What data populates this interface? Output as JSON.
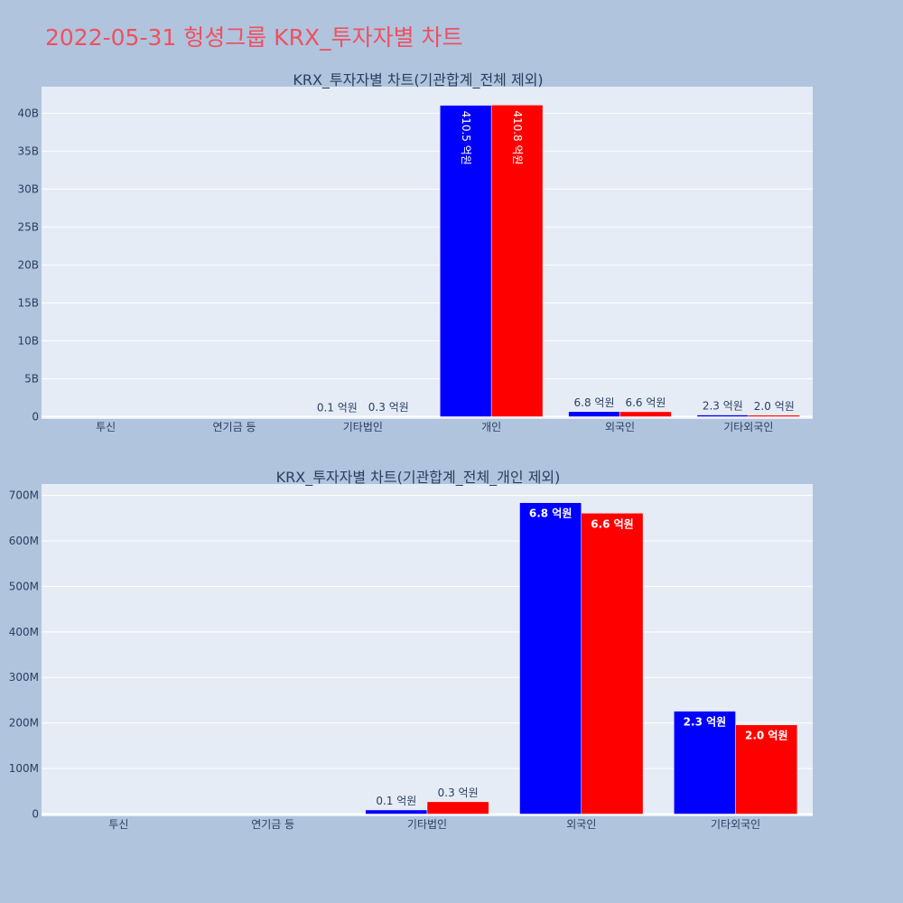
{
  "page": {
    "title": "2022-05-31 헝셩그룹 KRX_투자자별 차트"
  },
  "colors": {
    "background": "#b0c4de",
    "plot_bg": "#e5ecf6",
    "series_blue": "#0000ff",
    "series_red": "#ff0000",
    "title": "#f0505f",
    "text": "#2a3f5f"
  },
  "chart_data": [
    {
      "type": "bar",
      "title": "KRX_투자자별 차트(기관합계_전체 제외)",
      "categories": [
        "투신",
        "연기금 등",
        "기타법인",
        "개인",
        "외국인",
        "기타외국인"
      ],
      "series": [
        {
          "values": [
            0,
            0,
            10000000,
            41050000000,
            680000000,
            230000000
          ],
          "labels": [
            "",
            "",
            "0.1 억원",
            "410.5 억원",
            "6.8 억원",
            "2.3 억원"
          ]
        },
        {
          "values": [
            0,
            0,
            30000000,
            41080000000,
            660000000,
            200000000
          ],
          "labels": [
            "",
            "",
            "0.3 억원",
            "410.8 억원",
            "6.6 억원",
            "2.0 억원"
          ]
        }
      ],
      "yticks": [
        0,
        5000000000,
        10000000000,
        15000000000,
        20000000000,
        25000000000,
        30000000000,
        35000000000,
        40000000000
      ],
      "ytick_labels": [
        "0",
        "5B",
        "10B",
        "15B",
        "20B",
        "25B",
        "30B",
        "35B",
        "40B"
      ],
      "ylim": [
        -300000000,
        43500000000
      ],
      "grid": true,
      "text_inside_vertical": true
    },
    {
      "type": "bar",
      "title": "KRX_투자자별 차트(기관합계_전체_개인 제외)",
      "categories": [
        "투신",
        "연기금 등",
        "기타법인",
        "외국인",
        "기타외국인"
      ],
      "series": [
        {
          "values": [
            0,
            0,
            9000000,
            684000000,
            226000000
          ],
          "labels": [
            "",
            "",
            "0.1 억원",
            "6.8 억원",
            "2.3 억원"
          ]
        },
        {
          "values": [
            0,
            0,
            27000000,
            661000000,
            196000000
          ],
          "labels": [
            "",
            "",
            "0.3 억원",
            "6.6 억원",
            "2.0 억원"
          ]
        }
      ],
      "yticks": [
        0,
        100000000,
        200000000,
        300000000,
        400000000,
        500000000,
        600000000,
        700000000
      ],
      "ytick_labels": [
        "0",
        "100M",
        "200M",
        "300M",
        "400M",
        "500M",
        "600M",
        "700M"
      ],
      "ylim": [
        -5000000,
        725000000
      ],
      "grid": true,
      "text_inside_vertical": false
    }
  ]
}
